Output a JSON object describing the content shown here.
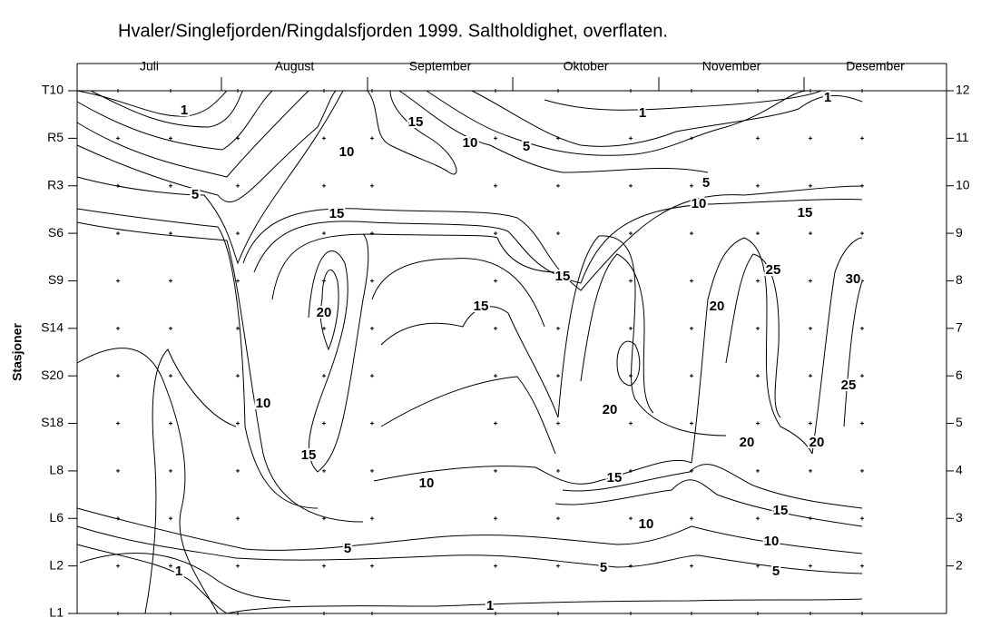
{
  "chart_data": {
    "type": "contour",
    "title": "Hvaler/Singlefjorden/Ringdalsfjorden 1999. Saltholdighet, overflaten.",
    "y_label": "Stasjoner",
    "stations": [
      "T10",
      "R5",
      "R3",
      "S6",
      "S9",
      "S14",
      "S20",
      "S18",
      "L8",
      "L6",
      "L2",
      "L1"
    ],
    "months": [
      "Juli",
      "August",
      "September",
      "Oktober",
      "November",
      "Desember"
    ],
    "y2lim": [
      1,
      12
    ],
    "y2ticks": [
      2,
      3,
      4,
      5,
      6,
      7,
      8,
      9,
      10,
      11,
      12
    ],
    "contour_labels": [
      1,
      15,
      10,
      5,
      1,
      1,
      10,
      5,
      5,
      10,
      15,
      15,
      15,
      25,
      30,
      20,
      15,
      20,
      20,
      25,
      10,
      15,
      20,
      20,
      10,
      15,
      15,
      10,
      10,
      5,
      5,
      5,
      1,
      1
    ]
  }
}
